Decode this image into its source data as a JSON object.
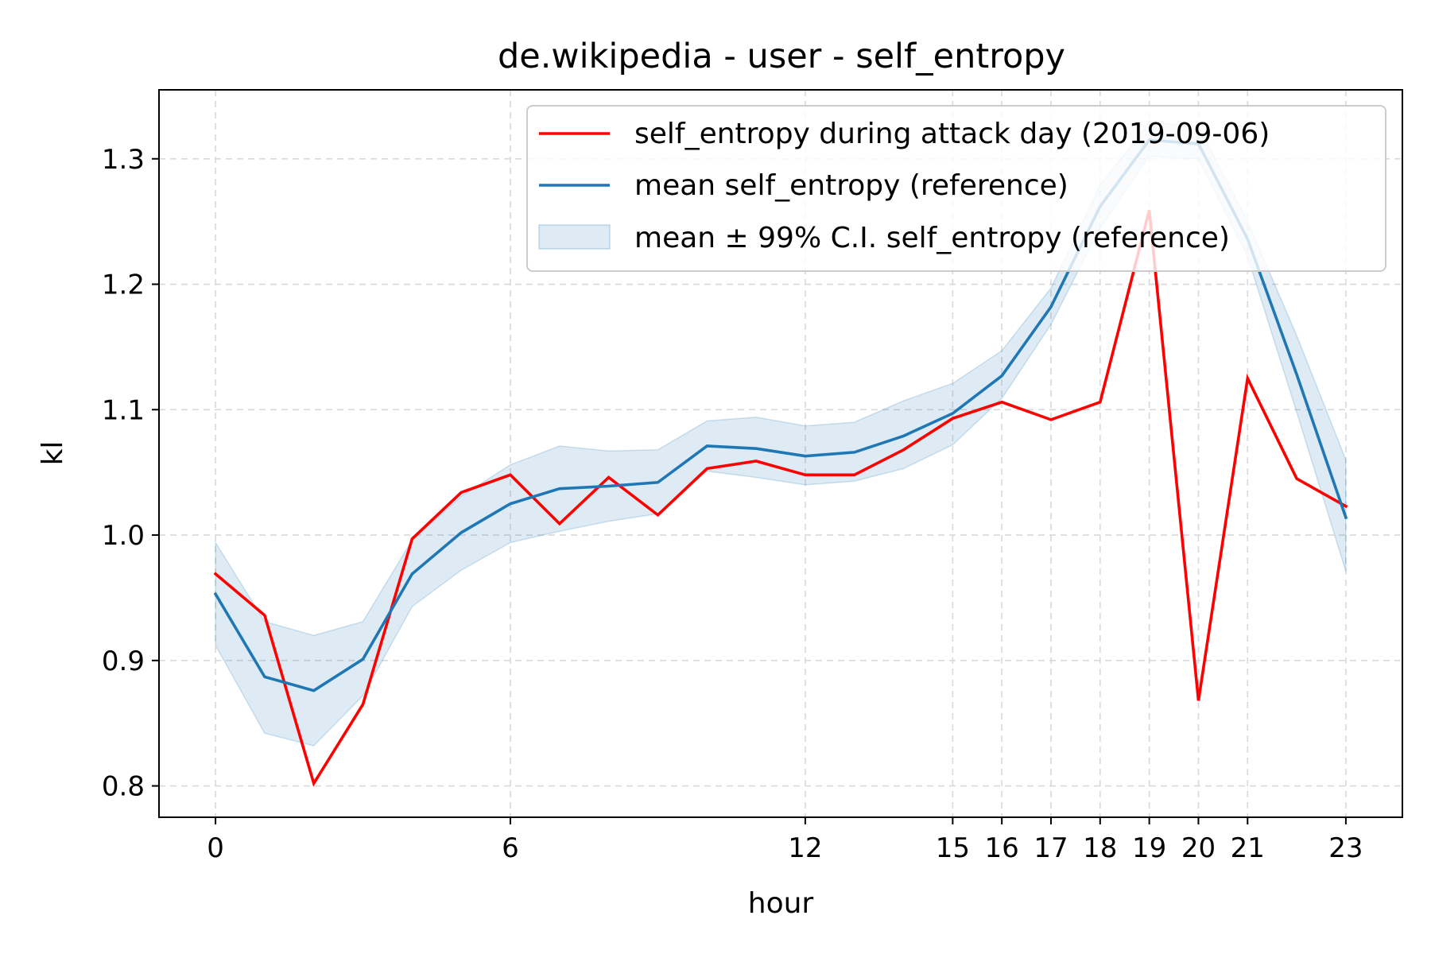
{
  "chart_data": {
    "type": "line",
    "title": "de.wikipedia - user - self_entropy",
    "xlabel": "hour",
    "ylabel": "kl",
    "xlim": [
      -1.15,
      24.15
    ],
    "ylim": [
      0.775,
      1.355
    ],
    "xticks": [
      0,
      6,
      12,
      15,
      16,
      17,
      18,
      19,
      20,
      21,
      23
    ],
    "yticks": [
      0.8,
      0.9,
      1.0,
      1.1,
      1.2,
      1.3
    ],
    "ytick_labels": [
      "0.8",
      "0.9",
      "1.0",
      "1.1",
      "1.2",
      "1.3"
    ],
    "grid": true,
    "legend_position": "top-right",
    "x": [
      0,
      1,
      2,
      3,
      4,
      5,
      6,
      7,
      8,
      9,
      10,
      11,
      12,
      13,
      14,
      15,
      16,
      17,
      18,
      19,
      20,
      21,
      22,
      23
    ],
    "series": [
      {
        "name": "self_entropy during attack day (2019-09-06)",
        "color": "#ff0000",
        "kind": "line",
        "values": [
          0.969,
          0.936,
          0.802,
          0.865,
          0.997,
          1.034,
          1.048,
          1.009,
          1.046,
          1.016,
          1.053,
          1.059,
          1.048,
          1.048,
          1.068,
          1.093,
          1.106,
          1.092,
          1.106,
          1.259,
          0.868,
          1.125,
          1.045,
          1.023
        ]
      },
      {
        "name": "mean self_entropy (reference)",
        "color": "#1f77b4",
        "kind": "line",
        "values": [
          0.953,
          0.887,
          0.876,
          0.901,
          0.969,
          1.002,
          1.025,
          1.037,
          1.039,
          1.042,
          1.071,
          1.069,
          1.063,
          1.066,
          1.079,
          1.097,
          1.127,
          1.182,
          1.262,
          1.315,
          1.312,
          1.236,
          1.128,
          1.014
        ]
      },
      {
        "name": "mean ± 99% C.I. self_entropy (reference)",
        "color": "#1f77b4",
        "kind": "band",
        "lower": [
          0.912,
          0.842,
          0.832,
          0.872,
          0.943,
          0.972,
          0.994,
          1.003,
          1.011,
          1.017,
          1.051,
          1.046,
          1.04,
          1.043,
          1.053,
          1.072,
          1.109,
          1.168,
          1.245,
          1.302,
          1.3,
          1.222,
          1.098,
          0.971
        ],
        "upper": [
          0.994,
          0.931,
          0.92,
          0.931,
          0.996,
          1.031,
          1.056,
          1.071,
          1.067,
          1.068,
          1.091,
          1.094,
          1.087,
          1.09,
          1.107,
          1.121,
          1.147,
          1.197,
          1.279,
          1.329,
          1.326,
          1.25,
          1.159,
          1.06
        ]
      }
    ]
  }
}
